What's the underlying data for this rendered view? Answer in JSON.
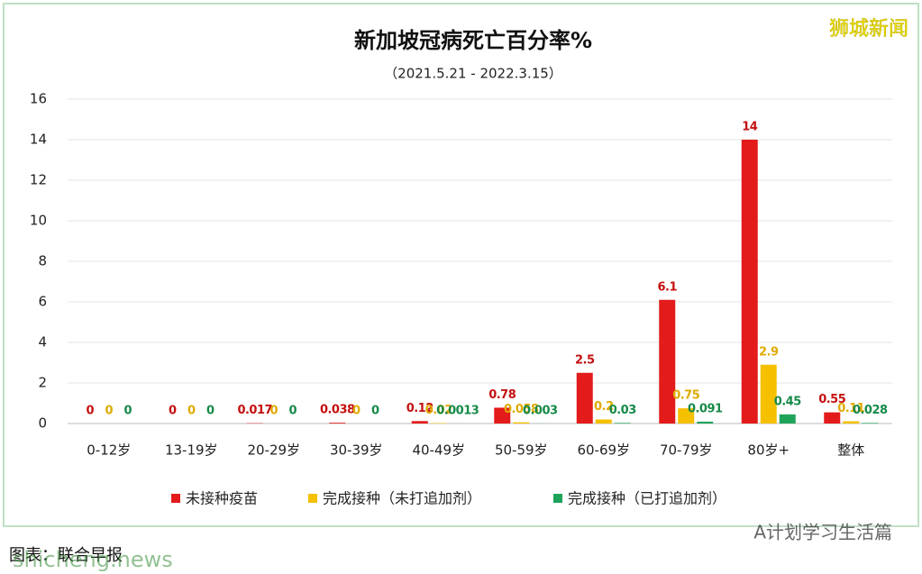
{
  "chart_data": {
    "type": "bar",
    "title": "新加坡冠病死亡百分率%",
    "subtitle": "（2021.5.21 - 2022.3.15）",
    "categories": [
      "0-12岁",
      "13-19岁",
      "20-29岁",
      "30-39岁",
      "40-49岁",
      "50-59岁",
      "60-69岁",
      "70-79岁",
      "80岁+",
      "整体"
    ],
    "series": [
      {
        "name": "未接种疫苗",
        "color": "#e31b1b",
        "values": [
          0,
          0,
          0.017,
          0.038,
          0.12,
          0.78,
          2.5,
          6.1,
          14,
          0.55
        ]
      },
      {
        "name": "完成接种（未打追加剂）",
        "color": "#f5c000",
        "values": [
          0,
          0,
          0,
          0,
          0.02,
          0.058,
          0.2,
          0.75,
          2.9,
          0.11
        ]
      },
      {
        "name": "完成接种（已打追加剂）",
        "color": "#1fa35a",
        "values": [
          0,
          0,
          0,
          0,
          0.0013,
          0.003,
          0.03,
          0.091,
          0.45,
          0.028
        ]
      }
    ],
    "ylim": [
      0,
      16
    ],
    "yticks": [
      0,
      2,
      4,
      6,
      8,
      10,
      12,
      14,
      16
    ],
    "grid": true,
    "legend": "bottom",
    "source": "图表：联合早报",
    "brand": "狮城新闻",
    "watermarks": [
      "A计划学习生活篇",
      "shicheng.news"
    ]
  }
}
